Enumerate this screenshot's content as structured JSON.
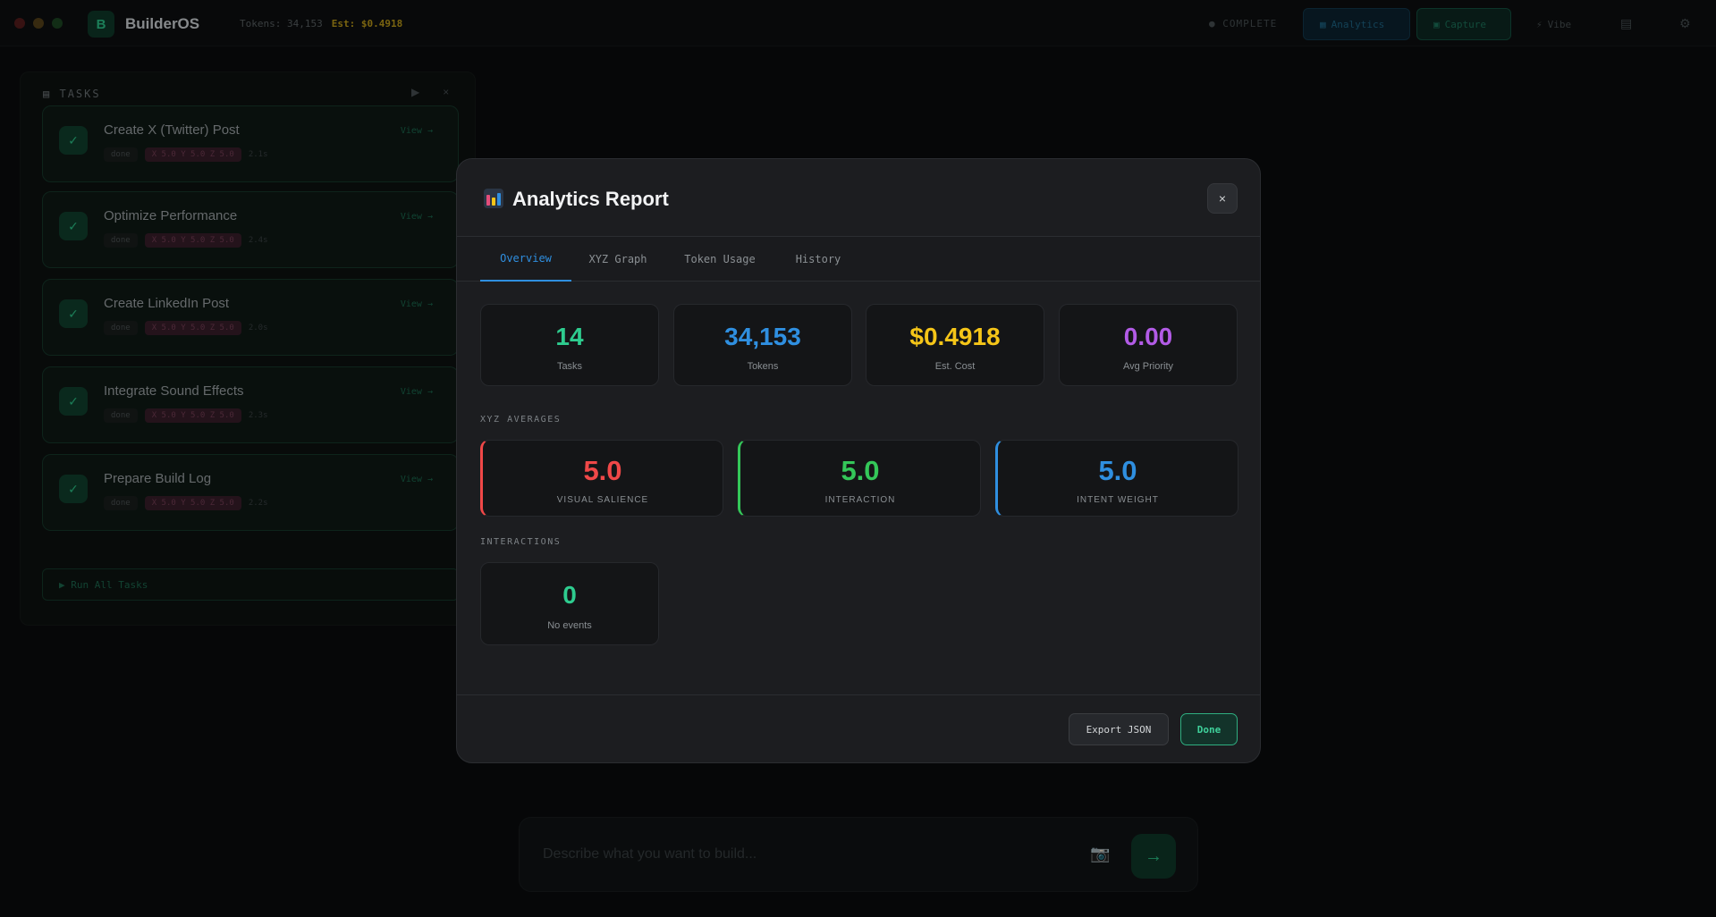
{
  "app": {
    "brand_initial": "B",
    "brand_name": "BuilderOS",
    "tokens_label": "Tokens: 34,153",
    "cost_label": "Est: $0.4918",
    "status": "COMPLETE",
    "buttons": {
      "analytics": "Analytics",
      "capture": "Capture",
      "vibe": "Vibe"
    }
  },
  "tasks": {
    "header": "TASKS",
    "items": [
      {
        "title": "Create X (Twitter) Post",
        "chip": "done",
        "xyz": "X 5.0 Y 5.0 Z 5.0",
        "time": "2.1s",
        "view": "View →"
      },
      {
        "title": "Optimize Performance",
        "chip": "done",
        "xyz": "X 5.0 Y 5.0 Z 5.0",
        "time": "2.4s",
        "view": "View →"
      },
      {
        "title": "Create LinkedIn Post",
        "chip": "done",
        "xyz": "X 5.0 Y 5.0 Z 5.0",
        "time": "2.0s",
        "view": "View →"
      },
      {
        "title": "Integrate Sound Effects",
        "chip": "done",
        "xyz": "X 5.0 Y 5.0 Z 5.0",
        "time": "2.3s",
        "view": "View →"
      },
      {
        "title": "Prepare Build Log",
        "chip": "done",
        "xyz": "X 5.0 Y 5.0 Z 5.0",
        "time": "2.2s",
        "view": "View →"
      }
    ],
    "run_all": "▶ Run All Tasks"
  },
  "composer": {
    "placeholder": "Describe what you want to build..."
  },
  "modal": {
    "title": "Analytics Report",
    "close": "×",
    "tabs": [
      "Overview",
      "XYZ Graph",
      "Token Usage",
      "History"
    ],
    "stats": [
      {
        "value": "14",
        "label": "Tasks",
        "color": "#2ecc8f"
      },
      {
        "value": "34,153",
        "label": "Tokens",
        "color": "#2f8fe0"
      },
      {
        "value": "$0.4918",
        "label": "Est. Cost",
        "color": "#f5c518"
      },
      {
        "value": "0.00",
        "label": "Avg Priority",
        "color": "#b25be6"
      }
    ],
    "xyz_section": "XYZ AVERAGES",
    "xyz": [
      {
        "value": "5.0",
        "label": "VISUAL SALIENCE",
        "color": "#f04848"
      },
      {
        "value": "5.0",
        "label": "INTERACTION",
        "color": "#34c759"
      },
      {
        "value": "5.0",
        "label": "INTENT WEIGHT",
        "color": "#2f8fe0"
      }
    ],
    "interactions_section": "INTERACTIONS",
    "interactions": {
      "value": "0",
      "label": "No events",
      "color": "#2ecc8f"
    },
    "export": "Export JSON",
    "done": "Done"
  }
}
